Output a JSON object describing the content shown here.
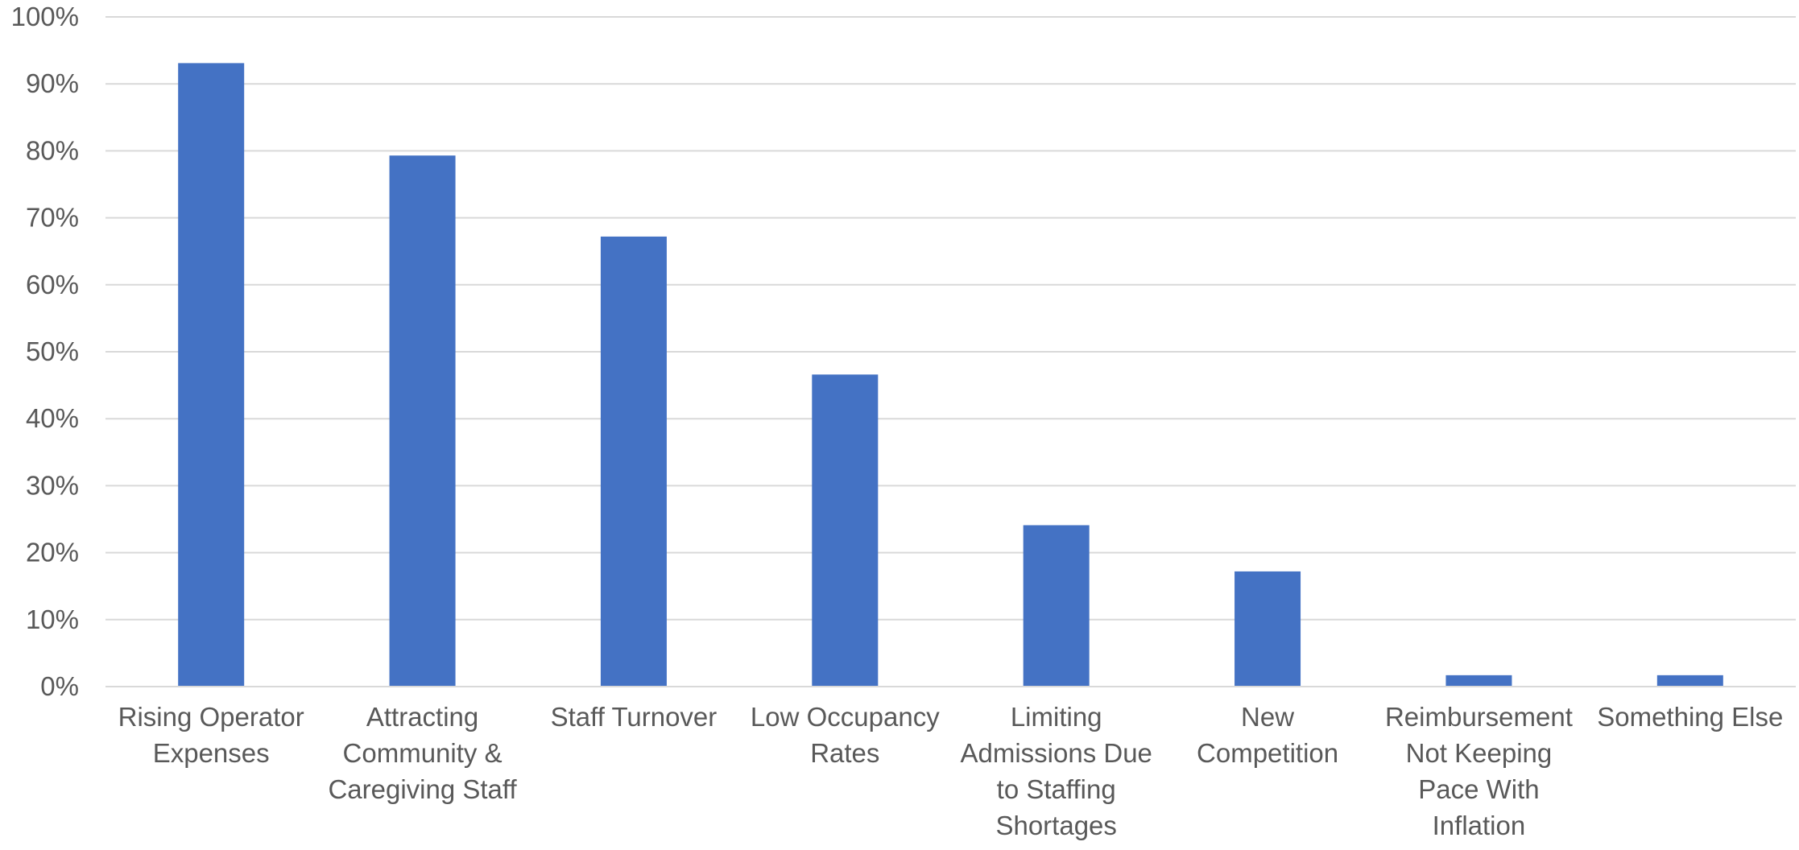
{
  "chart_data": {
    "type": "bar",
    "title": "",
    "xlabel": "",
    "ylabel": "",
    "ylim": [
      0,
      100
    ],
    "y_ticks": [
      "0%",
      "10%",
      "20%",
      "30%",
      "40%",
      "50%",
      "60%",
      "70%",
      "80%",
      "90%",
      "100%"
    ],
    "y_tick_values": [
      0,
      10,
      20,
      30,
      40,
      50,
      60,
      70,
      80,
      90,
      100
    ],
    "grid": true,
    "legend": "none",
    "bar_color": "#4472c4",
    "categories": [
      "Rising Operator Expenses",
      "Attracting Community & Caregiving Staff",
      "Staff Turnover",
      "Low Occupancy Rates",
      "Limiting Admissions Due to Staffing Shortages",
      "New Competition",
      "Reimbursement Not Keeping Pace With Inflation",
      "Something Else"
    ],
    "category_label_lines": [
      [
        "Rising Operator",
        "Expenses"
      ],
      [
        "Attracting",
        "Community &",
        "Caregiving Staff"
      ],
      [
        "Staff Turnover"
      ],
      [
        "Low Occupancy",
        "Rates"
      ],
      [
        "Limiting",
        "Admissions Due",
        "to Staffing",
        "Shortages"
      ],
      [
        "New",
        "Competition"
      ],
      [
        "Reimbursement",
        "Not Keeping",
        "Pace With",
        "Inflation"
      ],
      [
        "Something Else"
      ]
    ],
    "values": [
      93.1,
      79.3,
      67.2,
      46.6,
      24.1,
      17.2,
      1.7,
      1.7
    ]
  }
}
